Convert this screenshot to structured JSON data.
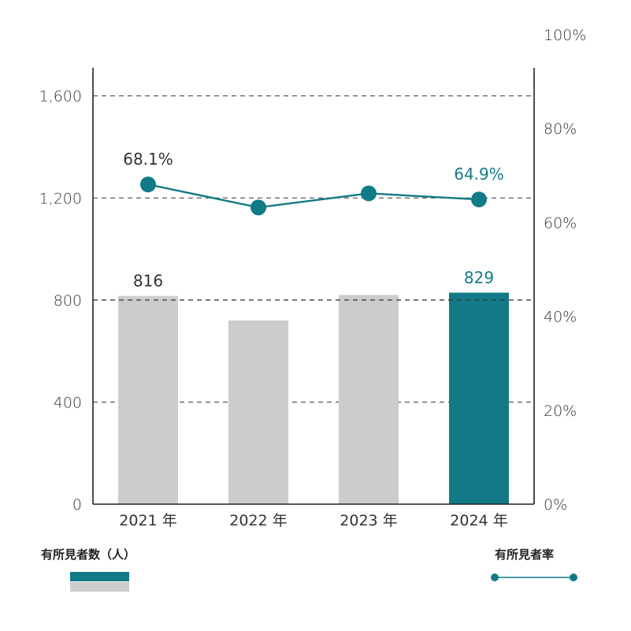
{
  "chart_data": {
    "type": "bar+line",
    "categories": [
      "2021 年",
      "2022 年",
      "2023 年",
      "2024 年"
    ],
    "bar_series": {
      "name": "有所見者数（人）",
      "values": [
        816,
        720,
        820,
        829
      ],
      "value_labels": [
        "816",
        "",
        "",
        "829"
      ]
    },
    "line_series": {
      "name": "有所見者率",
      "values": [
        68.1,
        63.2,
        66.2,
        64.9
      ],
      "value_labels": [
        "68.1%",
        "",
        "",
        "64.9%"
      ]
    },
    "y_left": {
      "ylim": [
        0,
        1840
      ],
      "ticks": [
        0,
        400,
        800,
        1200,
        1600
      ],
      "tick_labels": [
        "0",
        "400",
        "800",
        "1,200",
        "1,600"
      ]
    },
    "y_right": {
      "ylim": [
        0,
        100
      ],
      "ticks": [
        0,
        20,
        40,
        60,
        80,
        100
      ],
      "tick_labels": [
        "0%",
        "20%",
        "40%",
        "60%",
        "80%",
        "100%"
      ]
    },
    "grid": "dashed horizontal",
    "legend_placement": "bottom"
  },
  "colors": {
    "highlight": "#127a87",
    "bar_gray": "#cccccc",
    "axis": "#222222",
    "text": "#333333"
  },
  "legend": {
    "bar_title": "有所見者数（人）",
    "line_title": "有所見者率"
  }
}
